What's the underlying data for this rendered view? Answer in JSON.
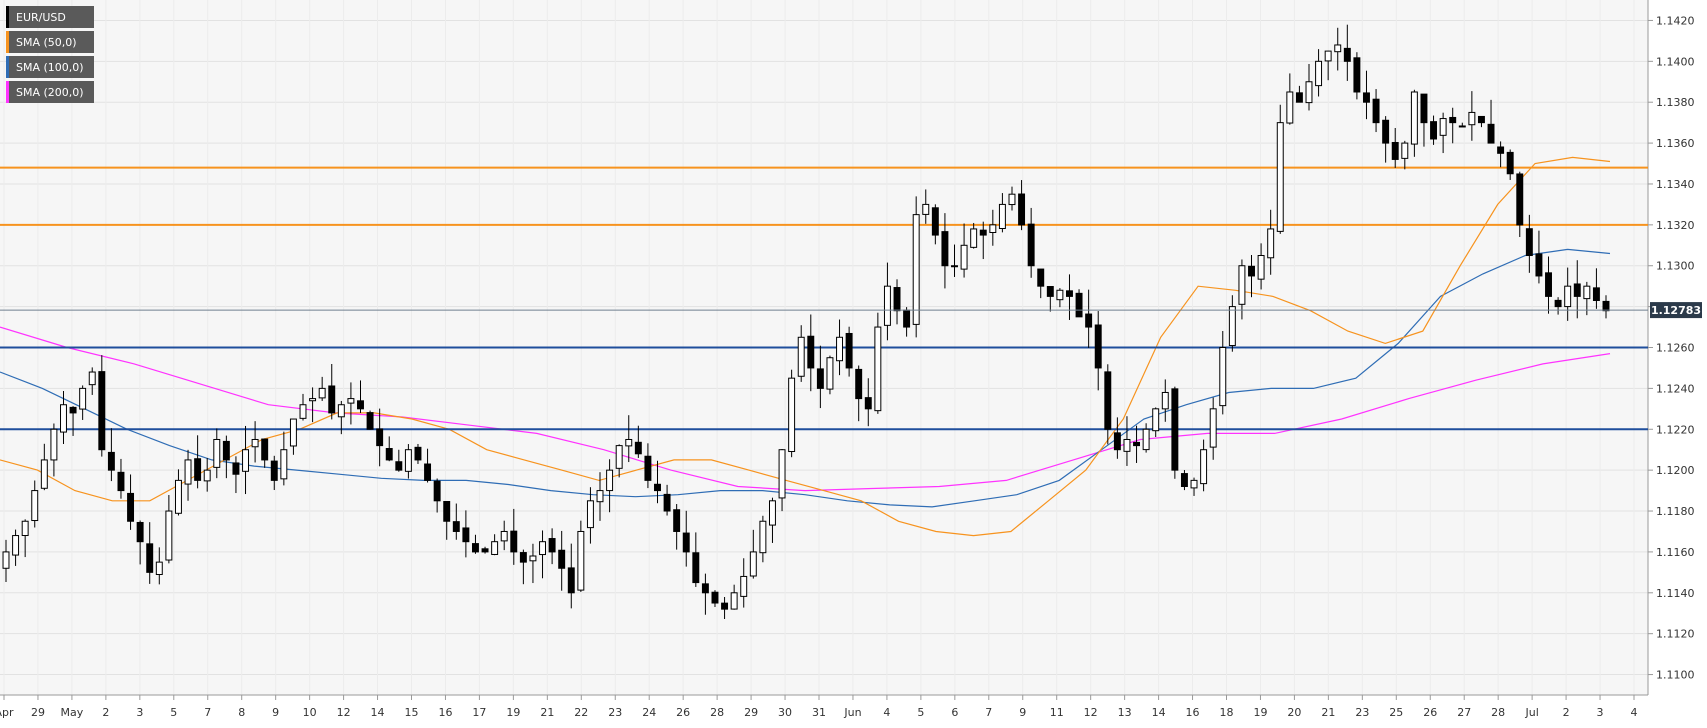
{
  "chart_data": {
    "type": "candlestick",
    "symbol": "EUR/USD",
    "timeframe_hint": "4-hour candles, 29 Apr to 3 Jul",
    "y_axis": {
      "min": 1.109,
      "max": 1.143,
      "ticks": [
        "1.1100",
        "1.1120",
        "1.1140",
        "1.1160",
        "1.1180",
        "1.1200",
        "1.1220",
        "1.1240",
        "1.1260",
        "1.1280",
        "1.1300",
        "1.1320",
        "1.1340",
        "1.1360",
        "1.1380",
        "1.1400",
        "1.1420"
      ]
    },
    "x_axis": {
      "ticks": [
        "Apr",
        "29",
        "May",
        "2",
        "3",
        "5",
        "7",
        "8",
        "9",
        "10",
        "12",
        "14",
        "15",
        "16",
        "17",
        "19",
        "21",
        "22",
        "23",
        "24",
        "26",
        "28",
        "29",
        "30",
        "31",
        "Jun",
        "4",
        "5",
        "6",
        "7",
        "9",
        "11",
        "12",
        "13",
        "14",
        "16",
        "18",
        "19",
        "20",
        "21",
        "23",
        "25",
        "26",
        "27",
        "28",
        "Jul",
        "2",
        "3",
        "4"
      ]
    },
    "last_price": "1.12783",
    "legend": [
      {
        "label": "EUR/USD",
        "color": "#000000"
      },
      {
        "label": "SMA (50,0)",
        "color": "#f7931e"
      },
      {
        "label": "SMA (100,0)",
        "color": "#2f6db5"
      },
      {
        "label": "SMA (200,0)",
        "color": "#ff33ff"
      }
    ],
    "horizontal_levels": [
      {
        "value": 1.1348,
        "color": "#f7931e",
        "kind": "resistance"
      },
      {
        "value": 1.132,
        "color": "#f7931e",
        "kind": "resistance"
      },
      {
        "value": 1.126,
        "color": "#1f4e9c",
        "kind": "support"
      },
      {
        "value": 1.122,
        "color": "#1f4e9c",
        "kind": "support"
      }
    ],
    "closes": [
      1.116,
      1.1168,
      1.1175,
      1.119,
      1.1205,
      1.122,
      1.1232,
      1.1228,
      1.124,
      1.1248,
      1.121,
      1.12,
      1.119,
      1.1175,
      1.1165,
      1.115,
      1.1155,
      1.118,
      1.1195,
      1.1205,
      1.1195,
      1.12,
      1.1215,
      1.1205,
      1.1198,
      1.121,
      1.1215,
      1.1205,
      1.1195,
      1.121,
      1.1225,
      1.1232,
      1.1235,
      1.124,
      1.1228,
      1.1232,
      1.1235,
      1.123,
      1.122,
      1.1212,
      1.1205,
      1.12,
      1.121,
      1.1205,
      1.1195,
      1.1185,
      1.1175,
      1.117,
      1.1165,
      1.116,
      1.116,
      1.1165,
      1.117,
      1.116,
      1.1155,
      1.1158,
      1.1165,
      1.116,
      1.1152,
      1.114,
      1.117,
      1.1185,
      1.119,
      1.12,
      1.1212,
      1.1215,
      1.1208,
      1.1195,
      1.119,
      1.118,
      1.117,
      1.116,
      1.1145,
      1.114,
      1.1135,
      1.1132,
      1.114,
      1.1148,
      1.116,
      1.1175,
      1.1185,
      1.121,
      1.1245,
      1.1265,
      1.125,
      1.124,
      1.1255,
      1.1265,
      1.125,
      1.1235,
      1.123,
      1.127,
      1.129,
      1.1278,
      1.127,
      1.1325,
      1.133,
      1.1315,
      1.13,
      1.13,
      1.131,
      1.1318,
      1.1315,
      1.132,
      1.133,
      1.1335,
      1.132,
      1.13,
      1.129,
      1.1285,
      1.1288,
      1.1285,
      1.1275,
      1.127,
      1.125,
      1.122,
      1.121,
      1.1215,
      1.1212,
      1.122,
      1.123,
      1.1238,
      1.12,
      1.1192,
      1.1195,
      1.121,
      1.123,
      1.126,
      1.128,
      1.13,
      1.1295,
      1.1305,
      1.1318,
      1.137,
      1.1385,
      1.138,
      1.139,
      1.14,
      1.1405,
      1.1408,
      1.14,
      1.1385,
      1.138,
      1.137,
      1.136,
      1.1352,
      1.136,
      1.1385,
      1.137,
      1.1362,
      1.1372,
      1.137,
      1.1368,
      1.1375,
      1.137,
      1.136,
      1.1355,
      1.1345,
      1.132,
      1.1305,
      1.1295,
      1.1285,
      1.128,
      1.129,
      1.1285,
      1.129,
      1.1283,
      1.1278
    ],
    "sma50": [
      1.1205,
      1.12,
      1.119,
      1.1185,
      1.1185,
      1.1195,
      1.1205,
      1.1215,
      1.122,
      1.1228,
      1.1228,
      1.1225,
      1.122,
      1.121,
      1.1205,
      1.12,
      1.1195,
      1.12,
      1.1205,
      1.1205,
      1.12,
      1.1195,
      1.119,
      1.1185,
      1.1175,
      1.117,
      1.1168,
      1.117,
      1.1185,
      1.12,
      1.1225,
      1.1265,
      1.129,
      1.1288,
      1.1285,
      1.1278,
      1.1268,
      1.1262,
      1.1268,
      1.13,
      1.133,
      1.135,
      1.1353,
      1.1351
    ],
    "sma100": [
      1.1248,
      1.124,
      1.123,
      1.122,
      1.1212,
      1.1205,
      1.1202,
      1.12,
      1.1198,
      1.1196,
      1.1195,
      1.1195,
      1.1193,
      1.119,
      1.1188,
      1.1187,
      1.1188,
      1.119,
      1.119,
      1.1188,
      1.1185,
      1.1183,
      1.1182,
      1.1185,
      1.1188,
      1.1195,
      1.121,
      1.1225,
      1.1232,
      1.1238,
      1.124,
      1.124,
      1.1245,
      1.1262,
      1.1285,
      1.1296,
      1.1305,
      1.1308,
      1.1306
    ],
    "sma200": [
      1.127,
      1.126,
      1.1252,
      1.1242,
      1.1232,
      1.1228,
      1.1226,
      1.1222,
      1.1218,
      1.121,
      1.12,
      1.1192,
      1.119,
      1.1191,
      1.1192,
      1.1195,
      1.1205,
      1.1215,
      1.1218,
      1.1218,
      1.1225,
      1.1235,
      1.1244,
      1.1252,
      1.1257
    ]
  }
}
